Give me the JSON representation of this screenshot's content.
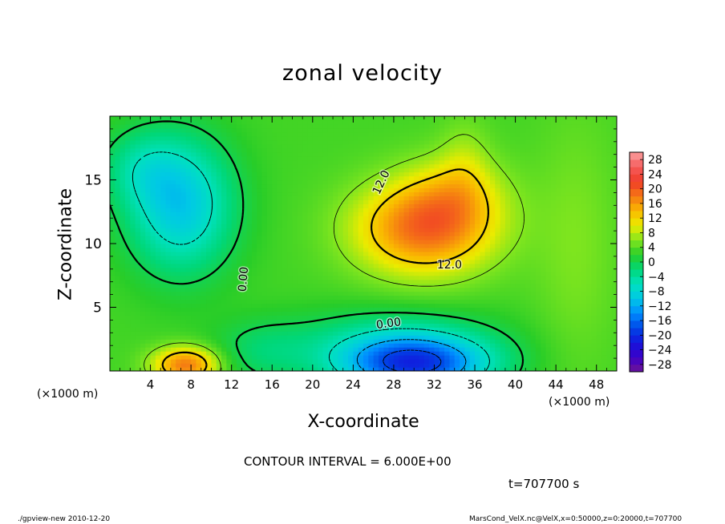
{
  "chart_data": {
    "type": "heatmap",
    "title": "zonal velocity",
    "xlabel": "X-coordinate",
    "ylabel": "Z-coordinate",
    "x_unit": "(×1000 m)",
    "y_unit": "(×1000 m)",
    "xlim": [
      0,
      50
    ],
    "ylim": [
      0,
      20
    ],
    "x_ticks": [
      "4",
      "8",
      "12",
      "16",
      "20",
      "24",
      "28",
      "32",
      "36",
      "40",
      "44",
      "48"
    ],
    "y_ticks": [
      "5",
      "10",
      "15"
    ],
    "colorbar_levels": [
      "28",
      "24",
      "20",
      "16",
      "12",
      "8",
      "4",
      "0",
      "−4",
      "−8",
      "−12",
      "−16",
      "−20",
      "−24",
      "−28"
    ],
    "colorbar_range": [
      -30,
      30
    ],
    "contour_labels": [
      "12.0",
      "12.0",
      "0.00",
      "0.00"
    ],
    "contour_interval_text": "CONTOUR INTERVAL = 6.000E+00",
    "time_text": "t=707700 s",
    "features": [
      {
        "desc": "jet maximum",
        "x": 31,
        "z": 11,
        "value": 18
      },
      {
        "desc": "surface easterly minimum",
        "x": 30,
        "z": 0.8,
        "value": -18
      },
      {
        "desc": "surface westerly maximum",
        "x": 7,
        "z": 0.7,
        "value": 16
      },
      {
        "desc": "upper-left easterly region",
        "x": 7,
        "z": 13,
        "value": -9
      }
    ]
  },
  "footer": {
    "left": "./gpview-new   2010-12-20",
    "right": "MarsCond_VelX.nc@VelX,x=0:50000,z=0:20000,t=707700"
  }
}
